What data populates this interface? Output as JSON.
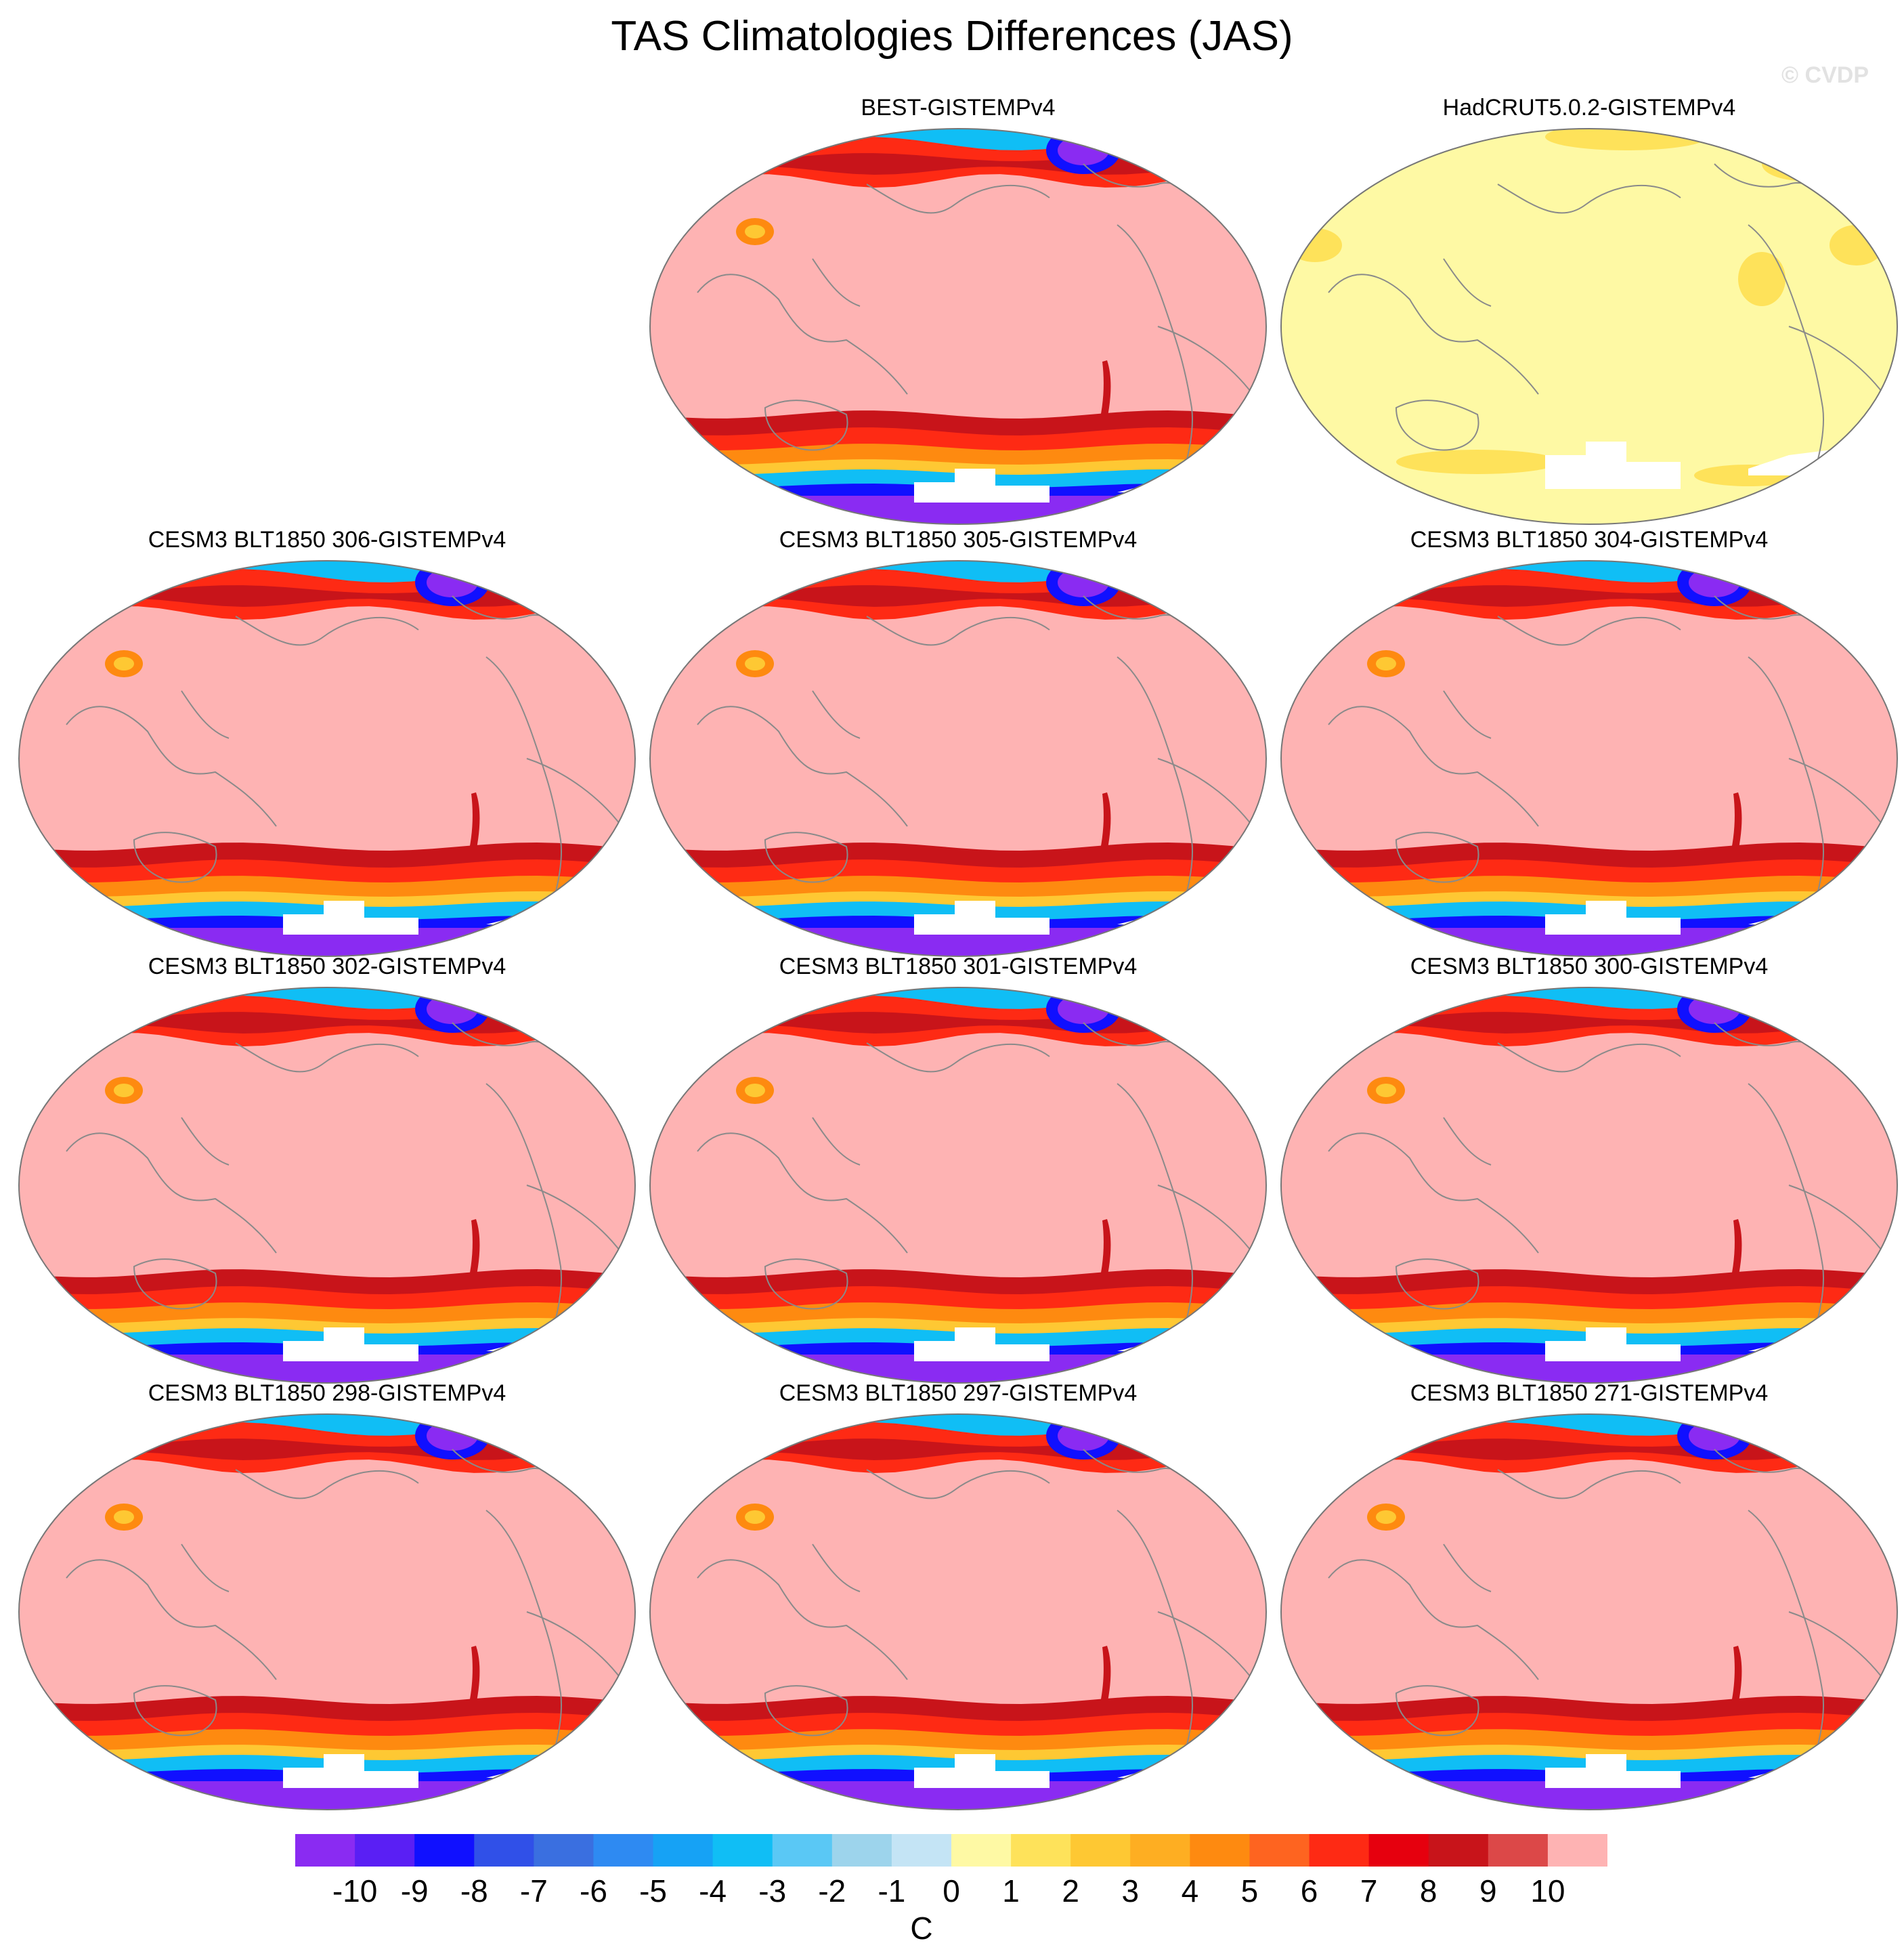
{
  "title": "TAS Climatologies Differences (JAS)",
  "watermark": "© CVDP",
  "panels": [
    {
      "title": "BEST-GISTEMPv4",
      "style": "model"
    },
    {
      "title": "HadCRUT5.0.2-GISTEMPv4",
      "style": "obs"
    },
    {
      "title": "CESM3 BLT1850 306-GISTEMPv4",
      "style": "model"
    },
    {
      "title": "CESM3 BLT1850 305-GISTEMPv4",
      "style": "model"
    },
    {
      "title": "CESM3 BLT1850 304-GISTEMPv4",
      "style": "model"
    },
    {
      "title": "CESM3 BLT1850 302-GISTEMPv4",
      "style": "model"
    },
    {
      "title": "CESM3 BLT1850 301-GISTEMPv4",
      "style": "model"
    },
    {
      "title": "CESM3 BLT1850 300-GISTEMPv4",
      "style": "model"
    },
    {
      "title": "CESM3 BLT1850 298-GISTEMPv4",
      "style": "model"
    },
    {
      "title": "CESM3 BLT1850 297-GISTEMPv4",
      "style": "model"
    },
    {
      "title": "CESM3 BLT1850 271-GISTEMPv4",
      "style": "model"
    }
  ],
  "colorbar": {
    "unit": "C",
    "labels": [
      "-10",
      "-9",
      "-8",
      "-7",
      "-6",
      "-5",
      "-4",
      "-3",
      "-2",
      "-1",
      "0",
      "1",
      "2",
      "3",
      "4",
      "5",
      "6",
      "7",
      "8",
      "9",
      "10"
    ],
    "colors": [
      "#8A2BF2",
      "#5A1FF4",
      "#1010FF",
      "#3050E8",
      "#3A6FE0",
      "#2E8AF2",
      "#16A2F5",
      "#10BEF5",
      "#5AC8F5",
      "#9DD4EC",
      "#C4E4F5",
      "#FEF9A4",
      "#FEE25A",
      "#FEC833",
      "#FEAE22",
      "#FE8A10",
      "#FE6420",
      "#FE2A14",
      "#E6000E",
      "#C8141A",
      "#DC4848",
      "#FEB3B3"
    ]
  },
  "palette": {
    "ocean_warm": "#FEB3B3",
    "obs_fill": "#FEF9A4",
    "obs_patch": "#FEE25A",
    "antarctic_cold": "#8A2BF2",
    "missing": "#FFFFFF",
    "band_dark": "#C8141A",
    "band_red": "#FE2A14",
    "band_orange": "#FE8A10",
    "band_yellow": "#FEC833",
    "band_cyan": "#10BEF5",
    "band_blue": "#1010FF",
    "coast": "#8A8A8A"
  }
}
